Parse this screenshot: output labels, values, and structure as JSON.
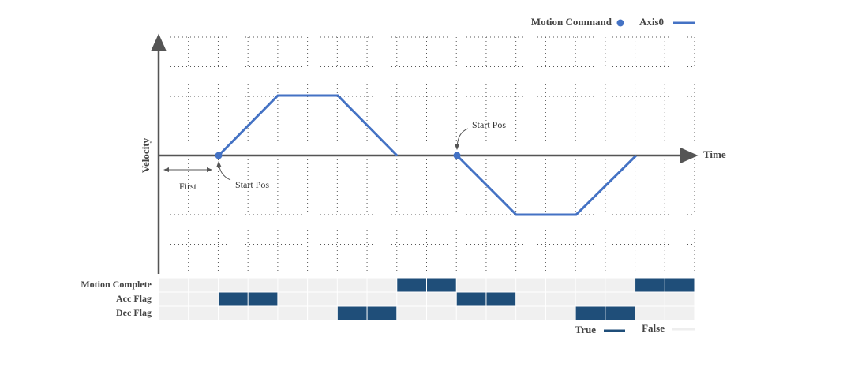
{
  "legend": {
    "command": "Motion Command",
    "axis": "Axis0"
  },
  "axes": {
    "y": "Velocity",
    "x": "Time"
  },
  "annotations": {
    "first": "First",
    "start_pos_1": "Start Pos",
    "start_pos_2": "Start Pos"
  },
  "flags": [
    {
      "label": "Motion Complete",
      "states": [
        false,
        false,
        false,
        false,
        false,
        false,
        false,
        false,
        true,
        true,
        false,
        false,
        false,
        false,
        false,
        false,
        true,
        true
      ]
    },
    {
      "label": "Acc Flag",
      "states": [
        false,
        false,
        true,
        true,
        false,
        false,
        false,
        false,
        false,
        false,
        true,
        true,
        false,
        false,
        false,
        false,
        false,
        false
      ]
    },
    {
      "label": "Dec Flag",
      "states": [
        false,
        false,
        false,
        false,
        false,
        false,
        true,
        true,
        false,
        false,
        false,
        false,
        false,
        false,
        true,
        true,
        false,
        false
      ]
    }
  ],
  "flag_legend": {
    "true": "True",
    "false": "False"
  }
}
